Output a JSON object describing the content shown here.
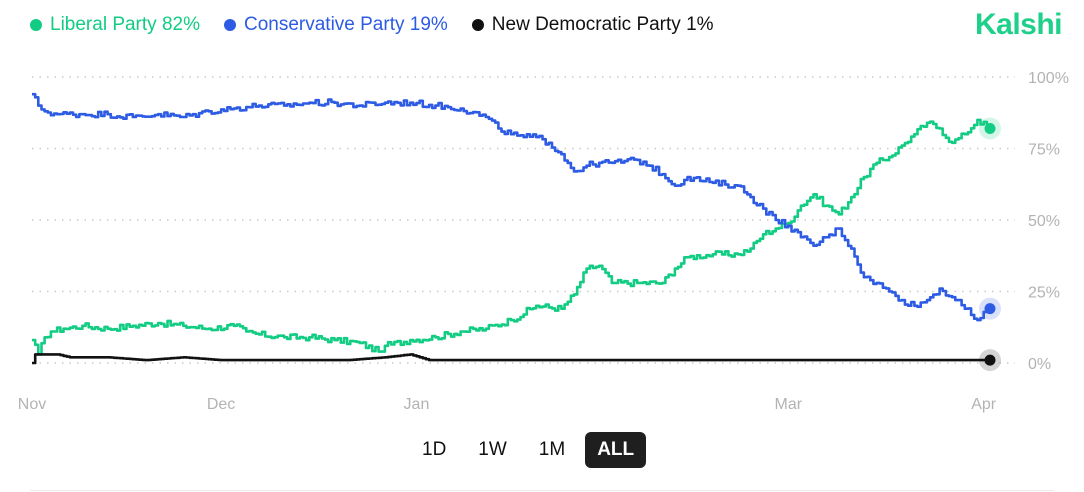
{
  "brand": {
    "name": "Kalshi",
    "color": "#1fd08a"
  },
  "legend": [
    {
      "label": "Liberal Party 82%",
      "color": "#12cc83"
    },
    {
      "label": "Conservative Party 19%",
      "color": "#2d5be3"
    },
    {
      "label": "New Democratic Party 1%",
      "color": "#111111"
    }
  ],
  "controls": {
    "buttons": [
      "1D",
      "1W",
      "1M",
      "ALL"
    ],
    "active": "ALL"
  },
  "chart_data": {
    "type": "line",
    "title": "",
    "xlabel": "",
    "ylabel": "",
    "x_ticks": [
      {
        "label": "Nov",
        "day": 0
      },
      {
        "label": "Dec",
        "day": 30
      },
      {
        "label": "Jan",
        "day": 61
      },
      {
        "label": "Mar",
        "day": 120
      },
      {
        "label": "Apr",
        "day": 151
      }
    ],
    "xlim": [
      0,
      152
    ],
    "ylim": [
      0,
      100
    ],
    "y_ticks": [
      "0%",
      "25%",
      "50%",
      "75%",
      "100%"
    ],
    "y_tick_values": [
      0,
      25,
      50,
      75,
      100
    ],
    "grid": "dotted horizontal",
    "y_axis_position": "right",
    "series": [
      {
        "name": "Liberal Party",
        "color": "#12cc83",
        "last_value": 82,
        "points": [
          [
            0,
            8
          ],
          [
            1,
            3
          ],
          [
            2,
            9
          ],
          [
            3,
            11
          ],
          [
            5,
            12
          ],
          [
            8,
            13
          ],
          [
            12,
            12
          ],
          [
            16,
            13
          ],
          [
            20,
            14
          ],
          [
            24,
            13
          ],
          [
            28,
            12
          ],
          [
            32,
            13
          ],
          [
            34,
            11
          ],
          [
            36,
            10
          ],
          [
            40,
            9
          ],
          [
            44,
            9
          ],
          [
            48,
            8
          ],
          [
            52,
            7
          ],
          [
            55,
            4
          ],
          [
            56,
            6
          ],
          [
            60,
            8
          ],
          [
            64,
            9
          ],
          [
            68,
            11
          ],
          [
            72,
            12
          ],
          [
            76,
            15
          ],
          [
            80,
            20
          ],
          [
            84,
            19
          ],
          [
            86,
            24
          ],
          [
            88,
            33
          ],
          [
            90,
            34
          ],
          [
            92,
            28
          ],
          [
            96,
            28
          ],
          [
            100,
            28
          ],
          [
            102,
            33
          ],
          [
            104,
            37
          ],
          [
            108,
            38
          ],
          [
            112,
            38
          ],
          [
            114,
            40
          ],
          [
            116,
            45
          ],
          [
            118,
            47
          ],
          [
            120,
            49
          ],
          [
            122,
            55
          ],
          [
            124,
            59
          ],
          [
            126,
            55
          ],
          [
            128,
            52
          ],
          [
            130,
            58
          ],
          [
            132,
            65
          ],
          [
            134,
            70
          ],
          [
            136,
            72
          ],
          [
            138,
            76
          ],
          [
            140,
            80
          ],
          [
            142,
            84
          ],
          [
            144,
            82
          ],
          [
            146,
            77
          ],
          [
            148,
            80
          ],
          [
            150,
            85
          ],
          [
            152,
            82
          ]
        ]
      },
      {
        "name": "Conservative Party",
        "color": "#2d5be3",
        "last_value": 19,
        "points": [
          [
            0,
            94
          ],
          [
            1,
            90
          ],
          [
            2,
            88
          ],
          [
            4,
            87
          ],
          [
            8,
            87
          ],
          [
            12,
            87
          ],
          [
            16,
            86
          ],
          [
            20,
            87
          ],
          [
            24,
            86
          ],
          [
            28,
            88
          ],
          [
            32,
            89
          ],
          [
            36,
            90
          ],
          [
            40,
            90
          ],
          [
            44,
            91
          ],
          [
            48,
            91
          ],
          [
            52,
            90
          ],
          [
            56,
            91
          ],
          [
            60,
            91
          ],
          [
            64,
            90
          ],
          [
            68,
            89
          ],
          [
            72,
            86
          ],
          [
            74,
            82
          ],
          [
            76,
            80
          ],
          [
            78,
            79
          ],
          [
            80,
            79
          ],
          [
            82,
            77
          ],
          [
            84,
            73
          ],
          [
            86,
            67
          ],
          [
            88,
            69
          ],
          [
            90,
            70
          ],
          [
            92,
            70
          ],
          [
            96,
            71
          ],
          [
            98,
            69
          ],
          [
            100,
            66
          ],
          [
            102,
            62
          ],
          [
            104,
            65
          ],
          [
            108,
            63
          ],
          [
            112,
            62
          ],
          [
            114,
            58
          ],
          [
            116,
            54
          ],
          [
            118,
            50
          ],
          [
            120,
            48
          ],
          [
            122,
            44
          ],
          [
            124,
            41
          ],
          [
            126,
            44
          ],
          [
            128,
            47
          ],
          [
            130,
            40
          ],
          [
            132,
            30
          ],
          [
            134,
            28
          ],
          [
            136,
            25
          ],
          [
            138,
            22
          ],
          [
            140,
            20
          ],
          [
            142,
            22
          ],
          [
            144,
            26
          ],
          [
            146,
            23
          ],
          [
            148,
            19
          ],
          [
            150,
            15
          ],
          [
            152,
            19
          ]
        ]
      },
      {
        "name": "New Democratic Party",
        "color": "#111111",
        "last_value": 1,
        "points": [
          [
            0,
            0
          ],
          [
            0.5,
            3
          ],
          [
            4,
            3
          ],
          [
            6,
            2
          ],
          [
            12,
            2
          ],
          [
            18,
            1
          ],
          [
            24,
            2
          ],
          [
            30,
            1
          ],
          [
            40,
            1
          ],
          [
            50,
            1
          ],
          [
            56,
            2
          ],
          [
            60,
            3
          ],
          [
            63,
            1
          ],
          [
            70,
            1
          ],
          [
            90,
            1
          ],
          [
            120,
            1
          ],
          [
            152,
            1
          ]
        ]
      }
    ]
  }
}
